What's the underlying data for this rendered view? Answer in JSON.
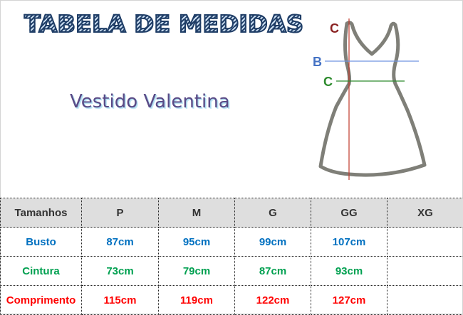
{
  "title": "TABELA DE MEDIDAS",
  "subtitle": "Vestido Valentina",
  "diagram": {
    "labels": {
      "top": "C",
      "bust": "B",
      "waist": "C"
    },
    "colors": {
      "top": "#8b2323",
      "bust": "#4472c4",
      "waist": "#2e8b2e",
      "length_line": "#c0392b",
      "outline": "#7f7f78"
    }
  },
  "table": {
    "headers": [
      "Tamanhos",
      "P",
      "M",
      "G",
      "GG",
      "XG"
    ],
    "rows": [
      {
        "label": "Busto",
        "values": [
          "87cm",
          "95cm",
          "99cm",
          "107cm",
          ""
        ],
        "color": "#0070c0"
      },
      {
        "label": "Cintura",
        "values": [
          "73cm",
          "79cm",
          "87cm",
          "93cm",
          ""
        ],
        "color": "#00a050"
      },
      {
        "label": "Comprimento",
        "values": [
          "115cm",
          "119cm",
          "122cm",
          "127cm",
          ""
        ],
        "color": "#ff0000"
      }
    ]
  }
}
